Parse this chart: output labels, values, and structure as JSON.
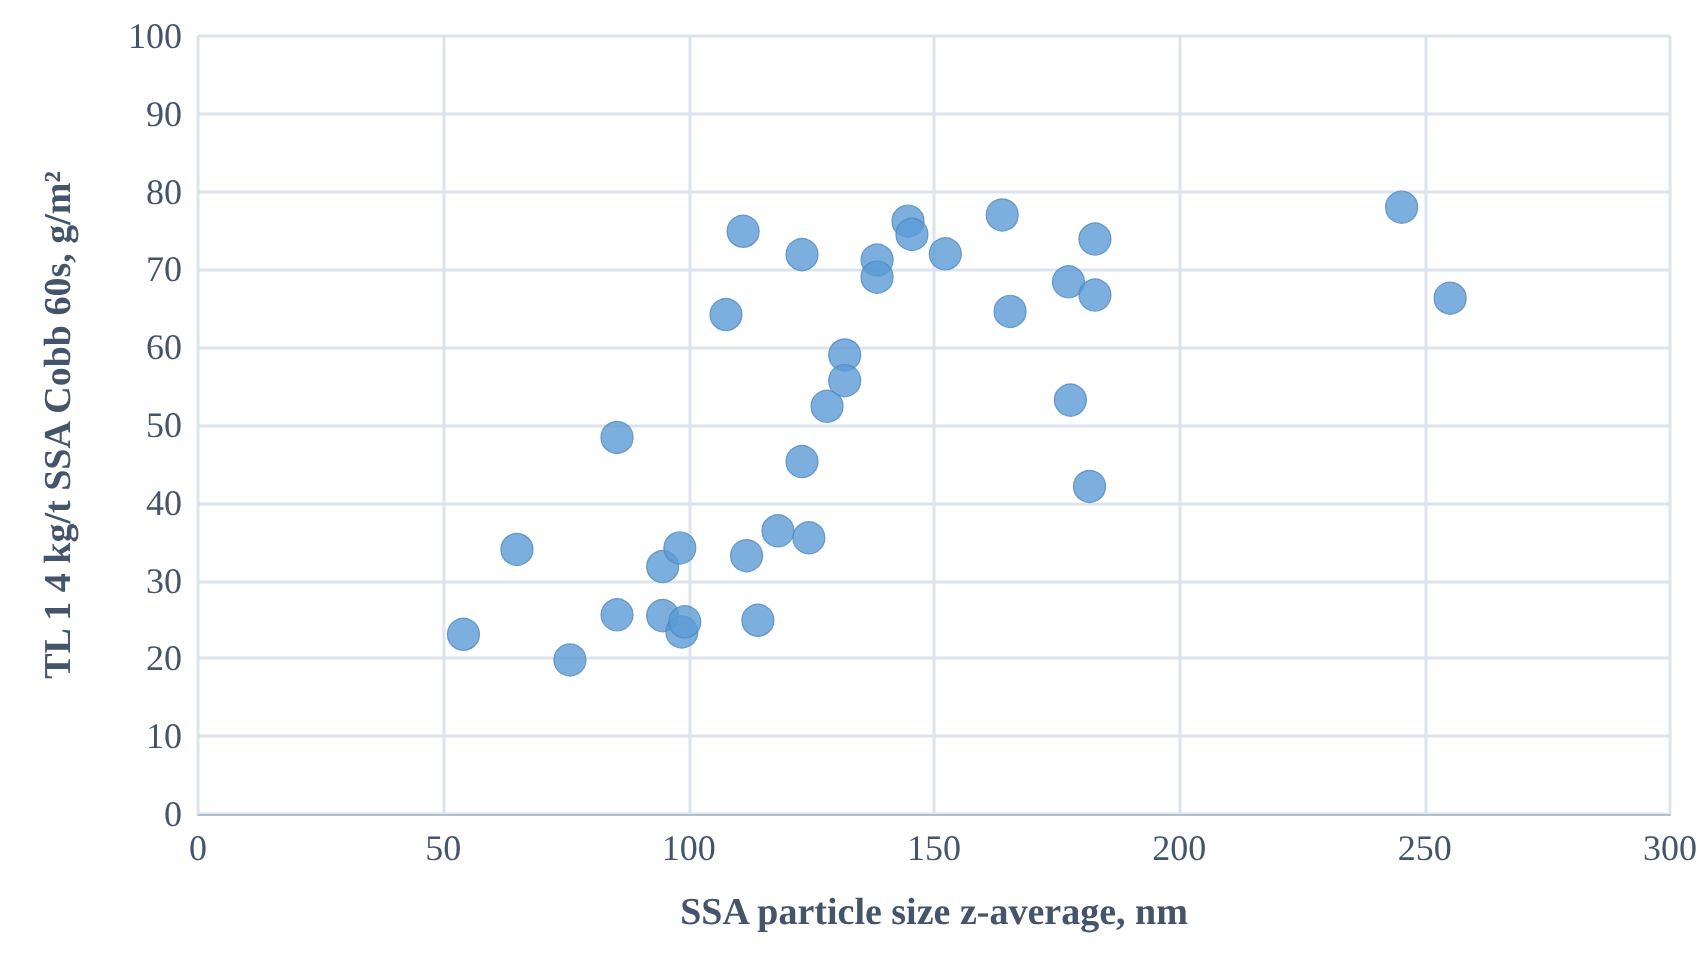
{
  "chart_data": {
    "type": "scatter",
    "xlabel": "SSA particle size z-average, nm",
    "ylabel": "TL 1 4 kg/t SSA Cobb 60s, g/m²",
    "x": [
      54.1,
      65.0,
      75.8,
      85.4,
      85.4,
      94.7,
      98.2,
      94.7,
      98.6,
      99.2,
      107.6,
      111.1,
      111.8,
      114.1,
      118.2,
      124.5,
      123.1,
      123.1,
      128.2,
      131.8,
      131.8,
      138.4,
      138.4,
      144.7,
      145.5,
      152.3,
      163.9,
      165.5,
      177.4,
      182.8,
      182.8,
      177.8,
      181.7,
      245.3,
      255.2
    ],
    "series": [
      {
        "color": "#5b9bd5",
        "values": [
          23.1,
          34.0,
          19.8,
          48.4,
          25.6,
          31.8,
          34.2,
          25.5,
          23.4,
          24.7,
          64.2,
          74.9,
          33.2,
          24.9,
          36.4,
          35.5,
          71.9,
          45.3,
          52.4,
          59.0,
          55.7,
          71.2,
          69.0,
          76.2,
          74.5,
          72.0,
          77.0,
          64.6,
          68.4,
          73.9,
          66.7,
          53.2,
          42.1,
          78.0,
          66.3
        ]
      }
    ],
    "xlim": [
      0,
      300
    ],
    "xticks": [
      0,
      50,
      100,
      150,
      200,
      250,
      300
    ],
    "ylim": [
      0,
      100
    ],
    "yticks": [
      0,
      10,
      20,
      30,
      40,
      50,
      60,
      70,
      80,
      90,
      100
    ],
    "grid": true,
    "marker": "circle"
  }
}
